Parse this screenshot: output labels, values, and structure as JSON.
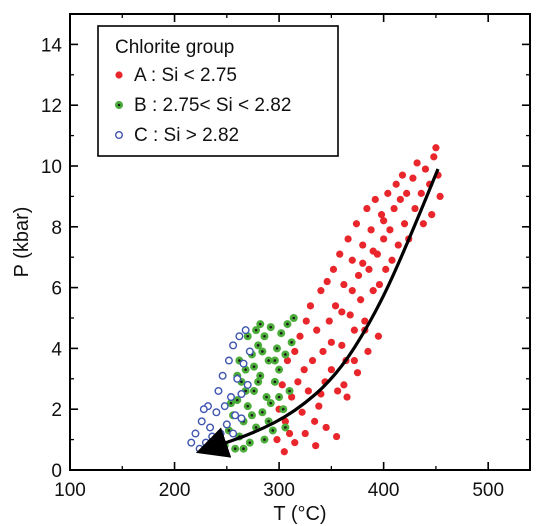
{
  "chart_data": {
    "type": "scatter",
    "xlabel": "T (°C)",
    "ylabel": "P (kbar)",
    "xlim": [
      100,
      540
    ],
    "ylim": [
      0,
      15
    ],
    "x_ticks": [
      100,
      200,
      300,
      400,
      500
    ],
    "y_ticks": [
      0,
      2,
      4,
      6,
      8,
      10,
      12,
      14
    ],
    "grid": false,
    "legend": {
      "title": "Chlorite group",
      "placement": "top-left",
      "entries": [
        {
          "label": "A : Si < 2.75",
          "marker": "filled-circle",
          "color": "#e8262b"
        },
        {
          "label": "B : 2.75< Si < 2.82",
          "marker": "filled-circle-dark-center",
          "color": "#4cad3a"
        },
        {
          "label": "C : Si > 2.82",
          "marker": "open-circle",
          "color": "#3f55b0"
        }
      ]
    },
    "series": [
      {
        "label": "A : Si < 2.75",
        "color": "#e8262b",
        "points": [
          [
            298,
            1.0
          ],
          [
            300,
            2.0
          ],
          [
            303,
            2.8
          ],
          [
            306,
            1.6
          ],
          [
            308,
            3.6
          ],
          [
            310,
            1.2
          ],
          [
            312,
            2.4
          ],
          [
            315,
            3.9
          ],
          [
            318,
            2.9
          ],
          [
            320,
            4.4
          ],
          [
            322,
            1.9
          ],
          [
            324,
            3.3
          ],
          [
            326,
            4.9
          ],
          [
            328,
            2.6
          ],
          [
            330,
            5.4
          ],
          [
            332,
            3.6
          ],
          [
            334,
            1.6
          ],
          [
            336,
            4.6
          ],
          [
            338,
            2.1
          ],
          [
            340,
            5.9
          ],
          [
            342,
            3.9
          ],
          [
            344,
            2.9
          ],
          [
            346,
            6.2
          ],
          [
            348,
            4.9
          ],
          [
            350,
            3.3
          ],
          [
            352,
            6.6
          ],
          [
            354,
            5.4
          ],
          [
            356,
            2.6
          ],
          [
            358,
            7.1
          ],
          [
            360,
            4.1
          ],
          [
            362,
            6.1
          ],
          [
            364,
            3.6
          ],
          [
            366,
            7.6
          ],
          [
            368,
            5.1
          ],
          [
            370,
            6.9
          ],
          [
            372,
            4.6
          ],
          [
            374,
            8.1
          ],
          [
            376,
            6.4
          ],
          [
            378,
            5.6
          ],
          [
            380,
            7.4
          ],
          [
            382,
            4.9
          ],
          [
            384,
            8.6
          ],
          [
            386,
            6.6
          ],
          [
            388,
            7.9
          ],
          [
            390,
            5.9
          ],
          [
            392,
            8.9
          ],
          [
            394,
            7.1
          ],
          [
            396,
            6.1
          ],
          [
            398,
            8.4
          ],
          [
            400,
            7.6
          ],
          [
            402,
            6.6
          ],
          [
            404,
            9.1
          ],
          [
            406,
            7.9
          ],
          [
            408,
            6.9
          ],
          [
            410,
            8.6
          ],
          [
            412,
            9.4
          ],
          [
            414,
            7.4
          ],
          [
            416,
            8.9
          ],
          [
            418,
            9.7
          ],
          [
            420,
            8.1
          ],
          [
            422,
            9.1
          ],
          [
            424,
            7.6
          ],
          [
            428,
            9.6
          ],
          [
            430,
            8.6
          ],
          [
            432,
            10.1
          ],
          [
            436,
            9.1
          ],
          [
            438,
            8.1
          ],
          [
            440,
            9.9
          ],
          [
            444,
            9.4
          ],
          [
            446,
            8.4
          ],
          [
            448,
            10.3
          ],
          [
            450,
            10.6
          ],
          [
            452,
            9.7
          ],
          [
            454,
            9.0
          ],
          [
            305,
            0.6
          ],
          [
            315,
            0.9
          ],
          [
            325,
            1.2
          ],
          [
            335,
            0.8
          ],
          [
            345,
            1.4
          ],
          [
            355,
            1.1
          ],
          [
            365,
            2.4
          ],
          [
            375,
            3.2
          ],
          [
            385,
            3.9
          ],
          [
            395,
            4.4
          ],
          [
            340,
            2.5
          ],
          [
            350,
            4.2
          ],
          [
            360,
            5.2
          ],
          [
            370,
            5.9
          ],
          [
            380,
            6.8
          ],
          [
            390,
            7.2
          ],
          [
            400,
            8.2
          ],
          [
            362,
            2.8
          ],
          [
            372,
            3.6
          ],
          [
            382,
            4.6
          ]
        ]
      },
      {
        "label": "B : 2.75< Si < 2.82",
        "color": "#4cad3a",
        "points": [
          [
            248,
            0.8
          ],
          [
            252,
            1.3
          ],
          [
            256,
            1.8
          ],
          [
            258,
            0.7
          ],
          [
            260,
            2.3
          ],
          [
            262,
            1.1
          ],
          [
            264,
            2.9
          ],
          [
            266,
            1.6
          ],
          [
            268,
            3.3
          ],
          [
            270,
            2.1
          ],
          [
            272,
            0.9
          ],
          [
            274,
            3.8
          ],
          [
            276,
            2.6
          ],
          [
            278,
            1.4
          ],
          [
            280,
            4.1
          ],
          [
            282,
            3.1
          ],
          [
            284,
            1.9
          ],
          [
            286,
            4.4
          ],
          [
            288,
            2.4
          ],
          [
            290,
            3.6
          ],
          [
            292,
            4.7
          ],
          [
            294,
            1.3
          ],
          [
            296,
            2.9
          ],
          [
            298,
            4.0
          ],
          [
            300,
            3.3
          ],
          [
            302,
            4.5
          ],
          [
            304,
            2.0
          ],
          [
            306,
            3.8
          ],
          [
            308,
            4.8
          ],
          [
            310,
            2.6
          ],
          [
            312,
            4.2
          ],
          [
            314,
            5.0
          ],
          [
            254,
            2.2
          ],
          [
            262,
            3.6
          ],
          [
            270,
            4.4
          ],
          [
            276,
            3.4
          ],
          [
            282,
            4.8
          ],
          [
            286,
            1.0
          ],
          [
            292,
            2.2
          ],
          [
            296,
            3.6
          ],
          [
            266,
            0.7
          ],
          [
            274,
            1.8
          ],
          [
            280,
            2.9
          ],
          [
            284,
            3.9
          ],
          [
            290,
            1.6
          ],
          [
            300,
            2.4
          ],
          [
            306,
            1.4
          ],
          [
            260,
            3.1
          ],
          [
            268,
            2.6
          ],
          [
            278,
            4.6
          ]
        ]
      },
      {
        "label": "C : Si > 2.82",
        "color": "#3f55b0",
        "points": [
          [
            216,
            0.9
          ],
          [
            220,
            1.2
          ],
          [
            224,
            0.7
          ],
          [
            226,
            1.6
          ],
          [
            230,
            0.9
          ],
          [
            232,
            2.1
          ],
          [
            234,
            1.4
          ],
          [
            238,
            0.8
          ],
          [
            240,
            1.9
          ],
          [
            242,
            2.6
          ],
          [
            244,
            1.2
          ],
          [
            246,
            3.1
          ],
          [
            248,
            2.1
          ],
          [
            250,
            1.5
          ],
          [
            252,
            3.6
          ],
          [
            254,
            2.4
          ],
          [
            256,
            4.1
          ],
          [
            258,
            1.8
          ],
          [
            260,
            3.0
          ],
          [
            262,
            4.4
          ],
          [
            264,
            2.5
          ],
          [
            266,
            3.5
          ],
          [
            268,
            4.6
          ],
          [
            270,
            2.8
          ],
          [
            228,
            2.0
          ],
          [
            236,
            1.1
          ],
          [
            246,
            0.7
          ],
          [
            256,
            1.2
          ],
          [
            264,
            1.7
          ],
          [
            272,
            3.9
          ]
        ]
      }
    ],
    "annotations": [
      {
        "type": "arrow",
        "description": "curved black arrow pointing from high P-T to low P-T",
        "path": [
          [
            452,
            9.9
          ],
          [
            420,
            7.2
          ],
          [
            390,
            5.0
          ],
          [
            355,
            3.1
          ],
          [
            315,
            1.9
          ],
          [
            275,
            1.2
          ],
          [
            232,
            0.7
          ]
        ]
      }
    ]
  }
}
